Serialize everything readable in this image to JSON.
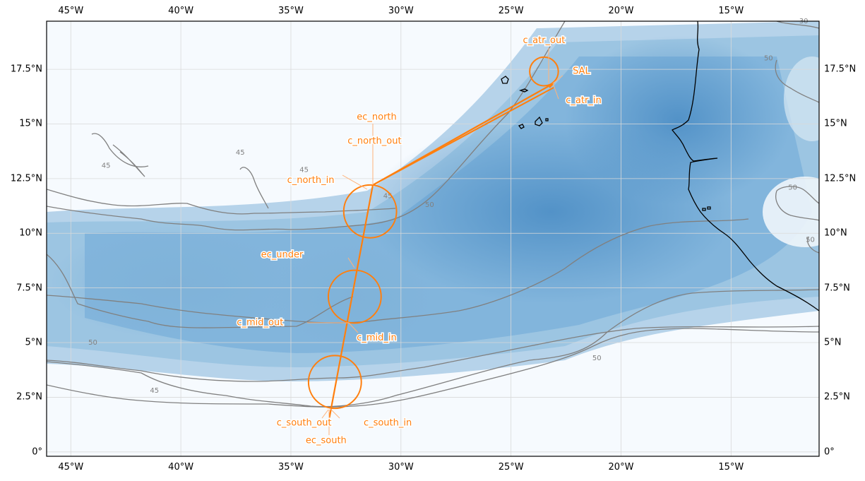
{
  "map": {
    "projection": "PlateCarree",
    "extent": {
      "lon_min": -46.1,
      "lon_max": -11.0,
      "lat_min": -0.2,
      "lat_max": 19.7
    },
    "field_colormap": "Blues",
    "colors": {
      "flight_track": "#ff7f0e",
      "annotation_text": "#ff7f0e",
      "contour": "#808080",
      "coastline": "#000000",
      "gridline": "#d0d0d0",
      "frame": "#000000"
    },
    "x_ticks": [
      "45°W",
      "40°W",
      "35°W",
      "30°W",
      "25°W",
      "20°W",
      "15°W"
    ],
    "x_tick_lons": [
      -45,
      -40,
      -35,
      -30,
      -25,
      -20,
      -15
    ],
    "y_ticks": [
      "0°",
      "2.5°N",
      "5°N",
      "7.5°N",
      "10°N",
      "12.5°N",
      "15°N",
      "17.5°N"
    ],
    "y_tick_lats": [
      0,
      2.5,
      5,
      7.5,
      10,
      12.5,
      15,
      17.5
    ],
    "contour_labels": [
      {
        "text": "45",
        "lon": -43.4,
        "lat": 13.0
      },
      {
        "text": "45",
        "lon": -37.3,
        "lat": 13.6
      },
      {
        "text": "45",
        "lon": -34.4,
        "lat": 12.8
      },
      {
        "text": "45",
        "lon": -30.6,
        "lat": 11.6
      },
      {
        "text": "50",
        "lon": -28.7,
        "lat": 11.2
      },
      {
        "text": "50",
        "lon": -44.0,
        "lat": 4.9
      },
      {
        "text": "45",
        "lon": -41.2,
        "lat": 2.7
      },
      {
        "text": "50",
        "lon": -21.1,
        "lat": 4.2
      },
      {
        "text": "50",
        "lon": -13.3,
        "lat": 17.9
      },
      {
        "text": "50",
        "lon": -12.2,
        "lat": 12.0
      },
      {
        "text": "50",
        "lon": -11.4,
        "lat": 9.6
      },
      {
        "text": "30",
        "lon": -11.7,
        "lat": 19.6
      }
    ],
    "circles": [
      {
        "name": "c_atr",
        "lon": -23.5,
        "lat": 17.4,
        "radius_deg": 0.65
      },
      {
        "name": "c_north",
        "lon": -31.4,
        "lat": 11.0,
        "radius_deg": 1.2
      },
      {
        "name": "c_mid",
        "lon": -32.1,
        "lat": 7.1,
        "radius_deg": 1.2
      },
      {
        "name": "c_south",
        "lon": -33.0,
        "lat": 3.2,
        "radius_deg": 1.2
      }
    ],
    "annotations": [
      {
        "label": "c_atr_out",
        "lon": -23.5,
        "lat": 18.7
      },
      {
        "label": "SAL",
        "lon": -21.8,
        "lat": 17.3
      },
      {
        "label": "c_atr_in",
        "lon": -21.7,
        "lat": 15.95
      },
      {
        "label": "ec_north",
        "lon": -31.1,
        "lat": 15.2
      },
      {
        "label": "c_north_out",
        "lon": -31.2,
        "lat": 14.1
      },
      {
        "label": "c_north_in",
        "lon": -34.1,
        "lat": 12.3
      },
      {
        "label": "ec_under",
        "lon": -35.4,
        "lat": 8.9
      },
      {
        "label": "c_mid_out",
        "lon": -36.4,
        "lat": 5.8
      },
      {
        "label": "c_mid_in",
        "lon": -31.1,
        "lat": 5.1
      },
      {
        "label": "c_south_out",
        "lon": -34.4,
        "lat": 1.2
      },
      {
        "label": "c_south_in",
        "lon": -30.6,
        "lat": 1.2
      },
      {
        "label": "ec_south",
        "lon": -33.4,
        "lat": 0.4
      }
    ]
  }
}
